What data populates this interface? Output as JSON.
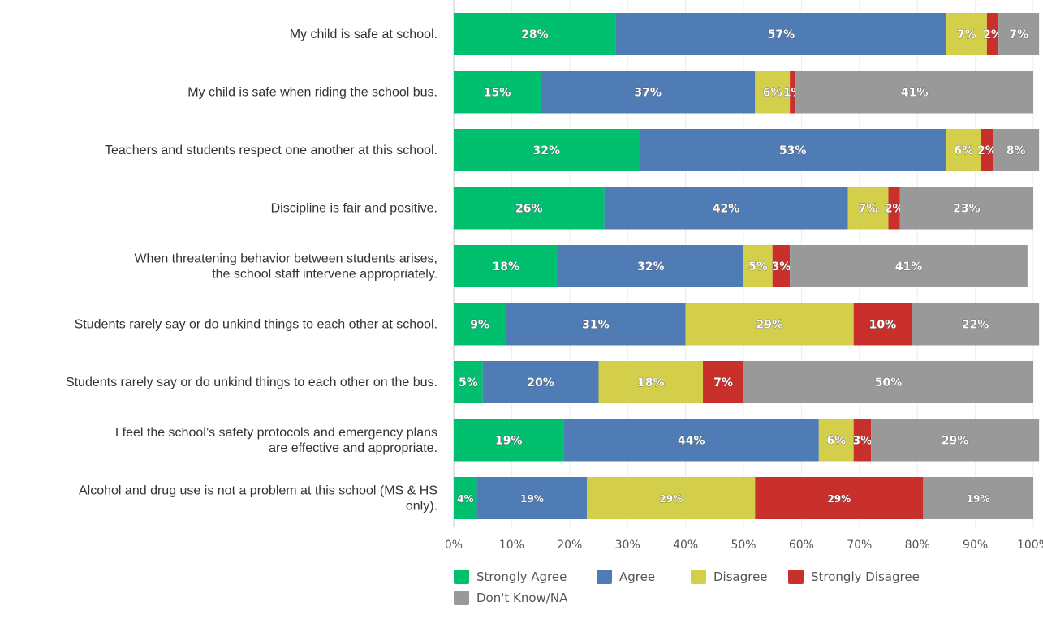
{
  "chart_data": {
    "type": "bar",
    "orientation": "horizontal",
    "stacked": true,
    "categories": [
      [
        "My child is safe at school."
      ],
      [
        "My child is safe when riding the school bus."
      ],
      [
        "Teachers and students respect one another at this school."
      ],
      [
        "Discipline is fair and positive."
      ],
      [
        "When threatening behavior between students arises,",
        "the school staff intervene appropriately."
      ],
      [
        "Students rarely say or do unkind things to each other at school."
      ],
      [
        "Students rarely say or do unkind things to each other on the bus."
      ],
      [
        "I feel the school’s safety protocols and emergency plans",
        "are effective and appropriate."
      ],
      [
        "Alcohol and drug use is not a problem at this school (MS & HS",
        "only)."
      ]
    ],
    "series": [
      {
        "name": "Strongly Agree",
        "color": "#00bf6f",
        "values": [
          28,
          15,
          32,
          26,
          18,
          9,
          5,
          19,
          4
        ]
      },
      {
        "name": "Agree",
        "color": "#507cb6",
        "values": [
          57,
          37,
          53,
          42,
          32,
          31,
          20,
          44,
          19
        ]
      },
      {
        "name": "Disagree",
        "color": "#d3cf4b",
        "values": [
          7,
          6,
          6,
          7,
          5,
          29,
          18,
          6,
          29
        ]
      },
      {
        "name": "Strongly Disagree",
        "color": "#c9302c",
        "values": [
          2,
          1,
          2,
          2,
          3,
          10,
          7,
          3,
          29
        ]
      },
      {
        "name": "Don't Know/NA",
        "color": "#999999",
        "values": [
          7,
          41,
          8,
          23,
          41,
          22,
          50,
          29,
          19
        ]
      }
    ],
    "xlim": [
      0,
      100
    ],
    "xticks": [
      "0%",
      "10%",
      "20%",
      "30%",
      "40%",
      "50%",
      "60%",
      "70%",
      "80%",
      "90%",
      "100%"
    ],
    "value_suffix": "%",
    "grid": true,
    "legend_position": "bottom"
  }
}
